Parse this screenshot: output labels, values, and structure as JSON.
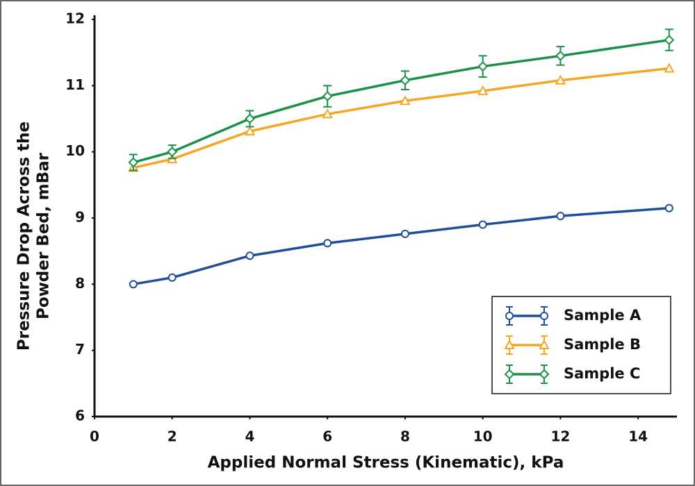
{
  "chart_data": {
    "type": "line",
    "x_label": "Applied Normal Stress (Kinematic), kPa",
    "y_label": [
      "Pressure Drop Across the",
      "Powder Bed, mBar"
    ],
    "x": [
      1,
      2,
      4,
      6,
      8,
      10,
      12,
      14.8
    ],
    "series": [
      {
        "name": "Sample A",
        "color": "#1f4e9a",
        "marker": "circle",
        "values": [
          8.0,
          8.1,
          8.43,
          8.62,
          8.76,
          8.9,
          9.03,
          9.15
        ]
      },
      {
        "name": "Sample B",
        "color": "#f5a623",
        "marker": "triangle",
        "values": [
          9.76,
          9.89,
          10.31,
          10.57,
          10.77,
          10.92,
          11.08,
          11.26
        ]
      },
      {
        "name": "Sample C",
        "color": "#1a9146",
        "marker": "diamond",
        "values": [
          9.84,
          10.0,
          10.5,
          10.84,
          11.08,
          11.29,
          11.45,
          11.69
        ],
        "errors": [
          0.12,
          0.1,
          0.12,
          0.16,
          0.14,
          0.16,
          0.14,
          0.16
        ]
      }
    ],
    "xlim": [
      0,
      15
    ],
    "xticks": [
      0,
      2,
      4,
      6,
      8,
      10,
      12,
      14
    ],
    "ylim": [
      6,
      12
    ],
    "yticks": [
      6,
      7,
      8,
      9,
      10,
      11,
      12
    ],
    "legend": "lower right"
  }
}
